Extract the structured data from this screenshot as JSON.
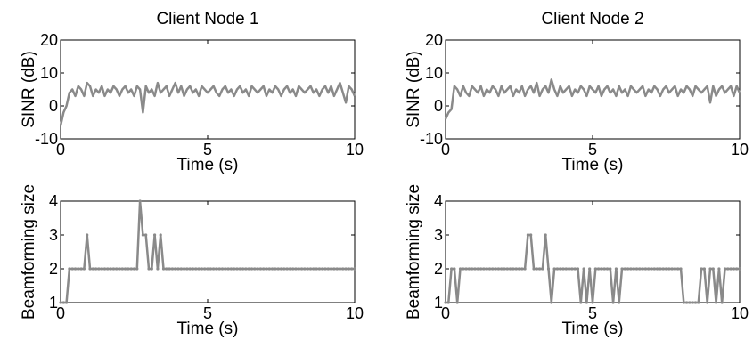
{
  "figure": {
    "background": "#ffffff",
    "line_color": "#8a8a8a"
  },
  "chart_data": [
    {
      "type": "line",
      "title": "Client Node 1",
      "xlabel": "Time (s)",
      "ylabel": "SINR (dB)",
      "xlim": [
        0,
        10
      ],
      "ylim": [
        -10,
        20
      ],
      "xticks": [
        0,
        5,
        10
      ],
      "yticks": [
        -10,
        0,
        10,
        20
      ],
      "xtick_labels": [
        "0",
        "5",
        "10"
      ],
      "ytick_labels": [
        "-10",
        "0",
        "10",
        "20"
      ],
      "grid": false,
      "series": [
        {
          "x": [
            0.0,
            0.1,
            0.2,
            0.3,
            0.4,
            0.5,
            0.6,
            0.7,
            0.8,
            0.9,
            1.0,
            1.1,
            1.2,
            1.3,
            1.4,
            1.5,
            1.6,
            1.7,
            1.8,
            1.9,
            2.0,
            2.1,
            2.2,
            2.3,
            2.4,
            2.5,
            2.6,
            2.7,
            2.8,
            2.9,
            3.0,
            3.1,
            3.2,
            3.3,
            3.4,
            3.5,
            3.6,
            3.7,
            3.8,
            3.9,
            4.0,
            4.1,
            4.2,
            4.3,
            4.4,
            4.5,
            4.6,
            4.7,
            4.8,
            4.9,
            5.0,
            5.1,
            5.2,
            5.3,
            5.4,
            5.5,
            5.6,
            5.7,
            5.8,
            5.9,
            6.0,
            6.1,
            6.2,
            6.3,
            6.4,
            6.5,
            6.6,
            6.7,
            6.8,
            6.9,
            7.0,
            7.1,
            7.2,
            7.3,
            7.4,
            7.5,
            7.6,
            7.7,
            7.8,
            7.9,
            8.0,
            8.1,
            8.2,
            8.3,
            8.4,
            8.5,
            8.6,
            8.7,
            8.8,
            8.9,
            9.0,
            9.1,
            9.2,
            9.3,
            9.4,
            9.5,
            9.6,
            9.7,
            9.8,
            9.9,
            10.0
          ],
          "y": [
            -6,
            -2,
            0,
            4,
            5,
            3,
            6,
            5,
            3,
            7,
            6,
            3,
            5,
            4,
            6,
            3,
            5,
            4,
            6,
            5,
            3,
            5,
            6,
            4,
            5,
            3,
            6,
            5,
            -2,
            6,
            4,
            5,
            3,
            7,
            4,
            5,
            6,
            3,
            5,
            7,
            4,
            6,
            3,
            5,
            6,
            4,
            5,
            3,
            6,
            5,
            4,
            5,
            6,
            4,
            3,
            5,
            6,
            4,
            5,
            3,
            5,
            6,
            4,
            5,
            3,
            6,
            5,
            4,
            5,
            6,
            3,
            5,
            4,
            6,
            5,
            3,
            5,
            6,
            4,
            5,
            3,
            6,
            5,
            4,
            5,
            6,
            4,
            5,
            3,
            5,
            6,
            4,
            6,
            3,
            5,
            7,
            4,
            1,
            6,
            5,
            3
          ]
        }
      ]
    },
    {
      "type": "line",
      "title": "Client Node 2",
      "xlabel": "Time (s)",
      "ylabel": "SINR (dB)",
      "xlim": [
        0,
        10
      ],
      "ylim": [
        -10,
        20
      ],
      "xticks": [
        0,
        5,
        10
      ],
      "yticks": [
        -10,
        0,
        10,
        20
      ],
      "xtick_labels": [
        "0",
        "5",
        "10"
      ],
      "ytick_labels": [
        "-10",
        "0",
        "10",
        "20"
      ],
      "grid": false,
      "series": [
        {
          "x": [
            0.0,
            0.1,
            0.2,
            0.3,
            0.4,
            0.5,
            0.6,
            0.7,
            0.8,
            0.9,
            1.0,
            1.1,
            1.2,
            1.3,
            1.4,
            1.5,
            1.6,
            1.7,
            1.8,
            1.9,
            2.0,
            2.1,
            2.2,
            2.3,
            2.4,
            2.5,
            2.6,
            2.7,
            2.8,
            2.9,
            3.0,
            3.1,
            3.2,
            3.3,
            3.4,
            3.5,
            3.6,
            3.7,
            3.8,
            3.9,
            4.0,
            4.1,
            4.2,
            4.3,
            4.4,
            4.5,
            4.6,
            4.7,
            4.8,
            4.9,
            5.0,
            5.1,
            5.2,
            5.3,
            5.4,
            5.5,
            5.6,
            5.7,
            5.8,
            5.9,
            6.0,
            6.1,
            6.2,
            6.3,
            6.4,
            6.5,
            6.6,
            6.7,
            6.8,
            6.9,
            7.0,
            7.1,
            7.2,
            7.3,
            7.4,
            7.5,
            7.6,
            7.7,
            7.8,
            7.9,
            8.0,
            8.1,
            8.2,
            8.3,
            8.4,
            8.5,
            8.6,
            8.7,
            8.8,
            8.9,
            9.0,
            9.1,
            9.2,
            9.3,
            9.4,
            9.5,
            9.6,
            9.7,
            9.8,
            9.9,
            10.0
          ],
          "y": [
            -4,
            -2,
            -1,
            6,
            5,
            3,
            6,
            4,
            3,
            6,
            5,
            4,
            6,
            3,
            5,
            4,
            6,
            5,
            3,
            6,
            4,
            5,
            6,
            3,
            5,
            4,
            6,
            3,
            5,
            6,
            4,
            7,
            3,
            5,
            6,
            4,
            8,
            5,
            3,
            6,
            4,
            5,
            6,
            3,
            5,
            4,
            6,
            5,
            3,
            6,
            5,
            4,
            6,
            3,
            5,
            6,
            4,
            5,
            3,
            6,
            4,
            5,
            3,
            6,
            5,
            4,
            5,
            6,
            3,
            5,
            4,
            6,
            5,
            3,
            5,
            6,
            4,
            5,
            6,
            3,
            5,
            4,
            6,
            5,
            3,
            6,
            5,
            4,
            5,
            6,
            1,
            6,
            3,
            5,
            6,
            4,
            5,
            6,
            3,
            6,
            4
          ]
        }
      ]
    },
    {
      "type": "line",
      "title": "",
      "xlabel": "Time (s)",
      "ylabel": "Beamforming size",
      "xlim": [
        0,
        10
      ],
      "ylim": [
        1,
        4
      ],
      "xticks": [
        0,
        5,
        10
      ],
      "yticks": [
        1,
        2,
        3,
        4
      ],
      "xtick_labels": [
        "0",
        "5",
        "10"
      ],
      "ytick_labels": [
        "1",
        "2",
        "3",
        "4"
      ],
      "grid": false,
      "markers": true,
      "series": [
        {
          "x": [
            0.0,
            0.1,
            0.2,
            0.3,
            0.4,
            0.5,
            0.6,
            0.7,
            0.8,
            0.9,
            1.0,
            1.1,
            1.2,
            1.3,
            1.4,
            1.5,
            1.6,
            1.7,
            1.8,
            1.9,
            2.0,
            2.1,
            2.2,
            2.3,
            2.4,
            2.5,
            2.6,
            2.7,
            2.8,
            2.9,
            3.0,
            3.1,
            3.2,
            3.3,
            3.4,
            3.5,
            3.6,
            3.7,
            3.8,
            3.9,
            4.0,
            4.1,
            4.2,
            4.3,
            4.4,
            4.5,
            4.6,
            4.7,
            4.8,
            4.9,
            5.0,
            5.1,
            5.2,
            5.3,
            5.4,
            5.5,
            5.6,
            5.7,
            5.8,
            5.9,
            6.0,
            6.1,
            6.2,
            6.3,
            6.4,
            6.5,
            6.6,
            6.7,
            6.8,
            6.9,
            7.0,
            7.1,
            7.2,
            7.3,
            7.4,
            7.5,
            7.6,
            7.7,
            7.8,
            7.9,
            8.0,
            8.1,
            8.2,
            8.3,
            8.4,
            8.5,
            8.6,
            8.7,
            8.8,
            8.9,
            9.0,
            9.1,
            9.2,
            9.3,
            9.4,
            9.5,
            9.6,
            9.7,
            9.8,
            9.9,
            10.0
          ],
          "y": [
            1,
            1,
            1,
            2,
            2,
            2,
            2,
            2,
            2,
            3,
            2,
            2,
            2,
            2,
            2,
            2,
            2,
            2,
            2,
            2,
            2,
            2,
            2,
            2,
            2,
            2,
            2,
            4,
            3,
            3,
            2,
            2,
            3,
            2,
            3,
            2,
            2,
            2,
            2,
            2,
            2,
            2,
            2,
            2,
            2,
            2,
            2,
            2,
            2,
            2,
            2,
            2,
            2,
            2,
            2,
            2,
            2,
            2,
            2,
            2,
            2,
            2,
            2,
            2,
            2,
            2,
            2,
            2,
            2,
            2,
            2,
            2,
            2,
            2,
            2,
            2,
            2,
            2,
            2,
            2,
            2,
            2,
            2,
            2,
            2,
            2,
            2,
            2,
            2,
            2,
            2,
            2,
            2,
            2,
            2,
            2,
            2,
            2,
            2,
            2,
            2
          ]
        }
      ]
    },
    {
      "type": "line",
      "title": "",
      "xlabel": "Time (s)",
      "ylabel": "Beamforming size",
      "xlim": [
        0,
        10
      ],
      "ylim": [
        1,
        4
      ],
      "xticks": [
        0,
        5,
        10
      ],
      "yticks": [
        1,
        2,
        3,
        4
      ],
      "xtick_labels": [
        "0",
        "5",
        "10"
      ],
      "ytick_labels": [
        "1",
        "2",
        "3",
        "4"
      ],
      "grid": false,
      "markers": true,
      "series": [
        {
          "x": [
            0.0,
            0.1,
            0.2,
            0.3,
            0.4,
            0.5,
            0.6,
            0.7,
            0.8,
            0.9,
            1.0,
            1.1,
            1.2,
            1.3,
            1.4,
            1.5,
            1.6,
            1.7,
            1.8,
            1.9,
            2.0,
            2.1,
            2.2,
            2.3,
            2.4,
            2.5,
            2.6,
            2.7,
            2.8,
            2.9,
            3.0,
            3.1,
            3.2,
            3.3,
            3.4,
            3.5,
            3.6,
            3.7,
            3.8,
            3.9,
            4.0,
            4.1,
            4.2,
            4.3,
            4.4,
            4.5,
            4.6,
            4.7,
            4.8,
            4.9,
            5.0,
            5.1,
            5.2,
            5.3,
            5.4,
            5.5,
            5.6,
            5.7,
            5.8,
            5.9,
            6.0,
            6.1,
            6.2,
            6.3,
            6.4,
            6.5,
            6.6,
            6.7,
            6.8,
            6.9,
            7.0,
            7.1,
            7.2,
            7.3,
            7.4,
            7.5,
            7.6,
            7.7,
            7.8,
            7.9,
            8.0,
            8.1,
            8.2,
            8.3,
            8.4,
            8.5,
            8.6,
            8.7,
            8.8,
            8.9,
            9.0,
            9.1,
            9.2,
            9.3,
            9.4,
            9.5,
            9.6,
            9.7,
            9.8,
            9.9,
            10.0
          ],
          "y": [
            1,
            1,
            2,
            2,
            1,
            2,
            2,
            2,
            2,
            2,
            2,
            2,
            2,
            2,
            2,
            2,
            2,
            2,
            2,
            2,
            2,
            2,
            2,
            2,
            2,
            2,
            2,
            2,
            3,
            3,
            2,
            2,
            2,
            2,
            3,
            2,
            1,
            2,
            2,
            2,
            2,
            2,
            2,
            2,
            2,
            2,
            1,
            2,
            1,
            2,
            1,
            2,
            2,
            2,
            2,
            2,
            2,
            1,
            2,
            1,
            2,
            2,
            2,
            2,
            2,
            2,
            2,
            2,
            2,
            2,
            2,
            2,
            2,
            2,
            2,
            2,
            2,
            2,
            2,
            2,
            2,
            1,
            1,
            1,
            1,
            1,
            1,
            2,
            2,
            1,
            2,
            2,
            1,
            2,
            1,
            2,
            2,
            2,
            2,
            2,
            2
          ]
        }
      ]
    }
  ]
}
